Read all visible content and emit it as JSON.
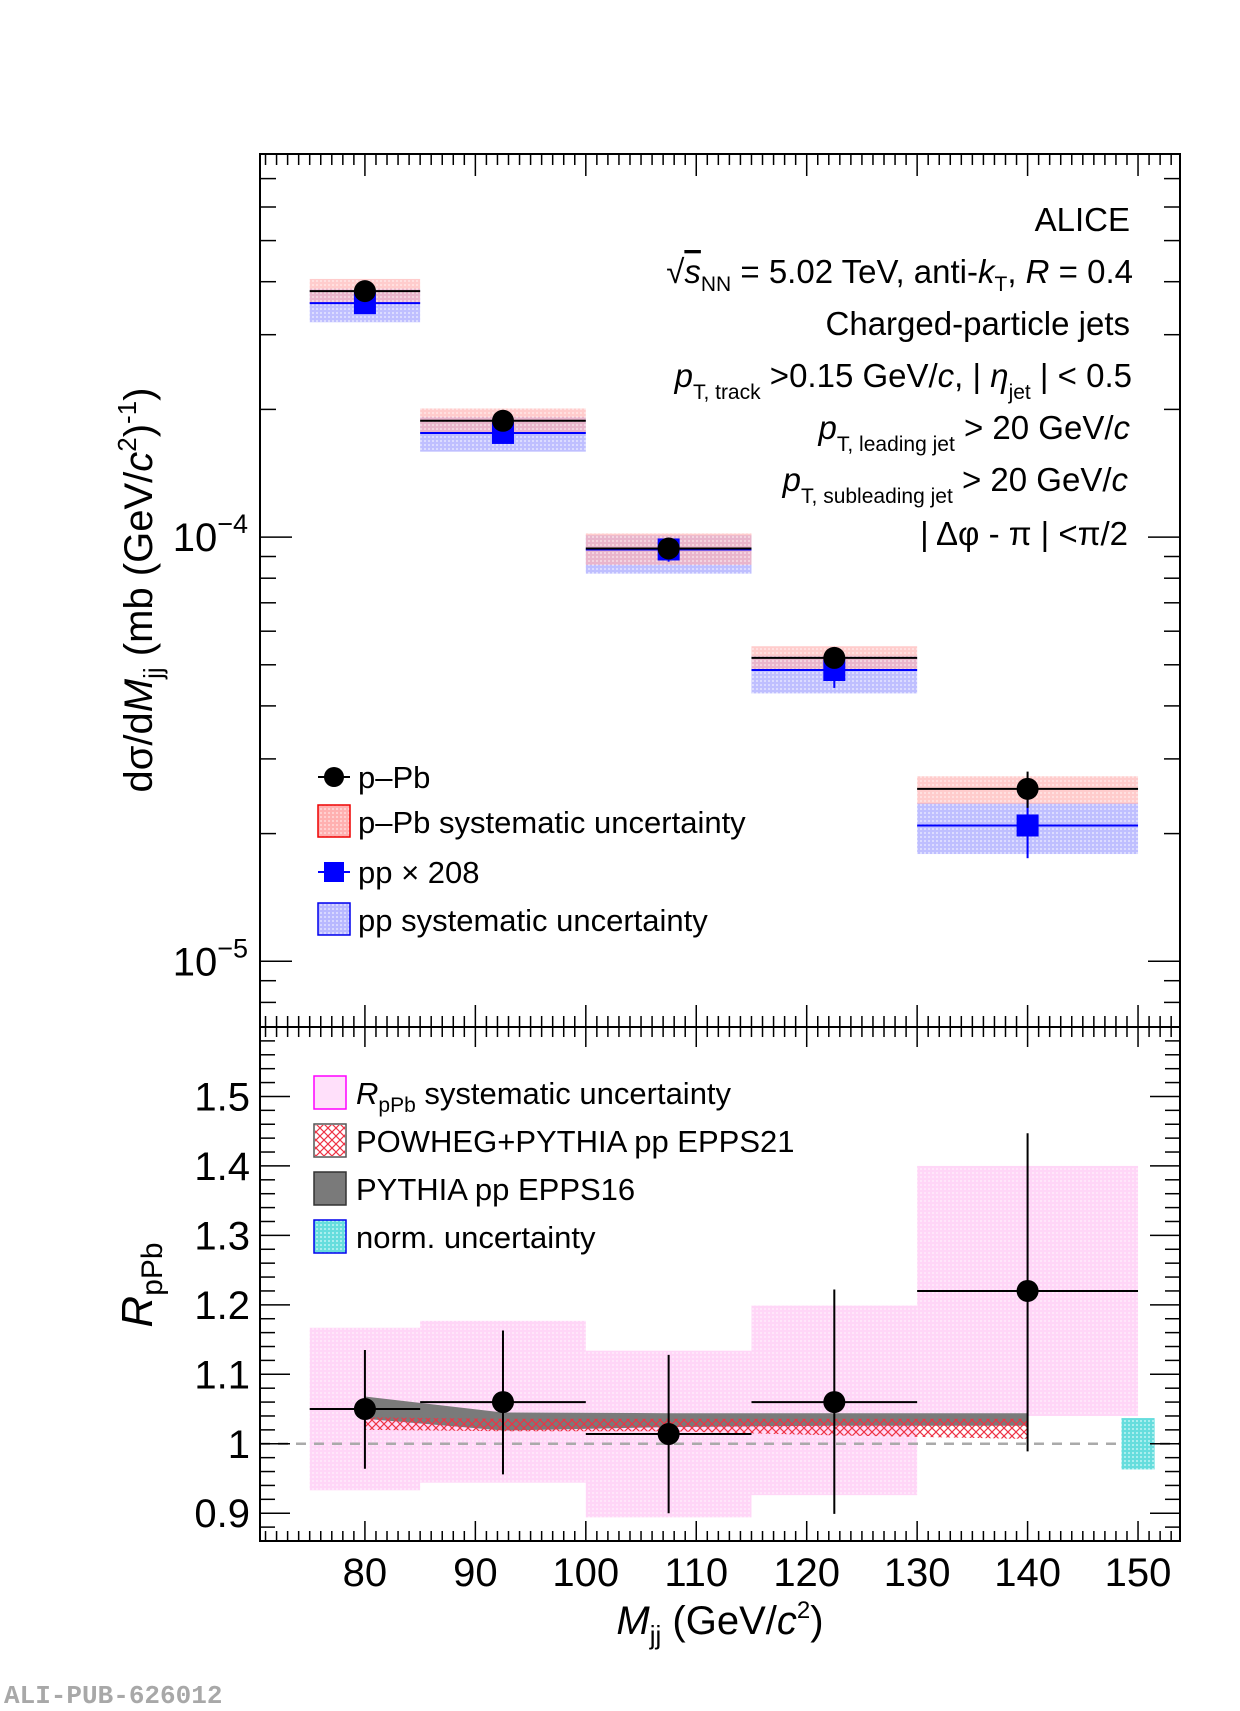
{
  "footer_id": "ALI-PUB-626012",
  "chart_data": [
    {
      "panel": "upper",
      "type": "scatter",
      "yscale": "log",
      "ylabel": "dσ/dM_jj (mb (GeV/c²)⁻¹)",
      "ylabel_parts": {
        "main": "dσ/d",
        "var": "M",
        "sub": "jj",
        "unit": " (mb (GeV/",
        "c": "c",
        "sup2": "2",
        "close": ")",
        "sup": "-1",
        "end": ")"
      },
      "xlim": [
        70.5,
        153.8
      ],
      "ylim": [
        7e-06,
        0.0008
      ],
      "y_major_ticks": [
        {
          "value": 0.0001,
          "base": "10",
          "exp": "−4"
        },
        {
          "value": 1e-05,
          "base": "10",
          "exp": "−5"
        }
      ],
      "bins": [
        [
          75,
          85
        ],
        [
          85,
          100
        ],
        [
          100,
          115
        ],
        [
          115,
          130
        ],
        [
          130,
          150
        ]
      ],
      "x": [
        80,
        92.5,
        107.5,
        122.5,
        140
      ],
      "series": [
        {
          "name": "p–Pb",
          "marker": "circle",
          "color": "#000000",
          "values": [
            0.00038,
            0.000188,
            9.4e-05,
            5.19e-05,
            2.55e-05
          ],
          "stat_err": [
            5e-06,
            5e-06,
            4e-06,
            2.5e-06,
            2.5e-06
          ],
          "syst_low": [
            0.000355,
            0.000176,
            8.6e-05,
            4.85e-05,
            2.35e-05
          ],
          "syst_high": [
            0.000406,
            0.000201,
            0.000102,
            5.53e-05,
            2.73e-05
          ],
          "syst_color": "#ff9999"
        },
        {
          "name": "pp × 208",
          "marker": "square",
          "color": "#0000ff",
          "values": [
            0.000356,
            0.000176,
            9.35e-05,
            4.86e-05,
            2.09e-05
          ],
          "stat_err": [
            1.5e-05,
            9e-06,
            6e-06,
            4.5e-06,
            3.4e-06
          ],
          "syst_low": [
            0.000321,
            0.000159,
            8.2e-05,
            4.28e-05,
            1.79e-05
          ],
          "syst_high": [
            0.000385,
            0.000192,
            0.000101,
            5.25e-05,
            2.36e-05
          ],
          "syst_color": "#9999ff"
        }
      ],
      "legend": {
        "placement": "bottom-left",
        "entries": [
          {
            "label": "p–Pb",
            "kind": "marker-circle"
          },
          {
            "label": "p–Pb systematic uncertainty",
            "kind": "box-red"
          },
          {
            "label": "pp × 208",
            "kind": "marker-square"
          },
          {
            "label": "pp systematic uncertainty",
            "kind": "box-blue"
          }
        ]
      },
      "annotations": {
        "placement": "top-right",
        "experiment": "ALICE",
        "energy": {
          "sqrt": "√",
          "s": "s",
          "sub": "NN",
          "rest": " = 5.02 TeV, anti-",
          "k": "k",
          "ksub": "T",
          "comma": ", ",
          "R": "R",
          "rval": " = 0.4"
        },
        "jets": "Charged-particle jets",
        "track_cut": {
          "p": "p",
          "sub": "T, track",
          "rest1": " >0.15 GeV/",
          "c": "c",
          "rest2": ", | ",
          "eta": "η",
          "etasub": "jet",
          "rest3": " | < 0.5"
        },
        "leading_cut": {
          "p": "p",
          "sub": "T, leading jet",
          "rest": " > 20 GeV/",
          "c": "c"
        },
        "subleading_cut": {
          "p": "p",
          "sub": "T, subleading jet",
          "rest": " > 20 GeV/",
          "c": "c"
        },
        "dphi_cut": "| Δφ - π | <π/2"
      }
    },
    {
      "panel": "lower",
      "type": "scatter",
      "ylabel": "R_pPb",
      "ylabel_parts": {
        "main": "R",
        "sub": "pPb"
      },
      "xlabel": "M_jj (GeV/c²)",
      "xlabel_parts": {
        "var": "M",
        "sub": "jj",
        "unit": " (GeV/",
        "c": "c",
        "sup": "2",
        "close": ")"
      },
      "xlim": [
        70.5,
        153.8
      ],
      "ylim": [
        0.86,
        1.6
      ],
      "x_ticks": [
        80,
        90,
        100,
        110,
        120,
        130,
        140,
        150
      ],
      "y_ticks": [
        0.9,
        1.0,
        1.1,
        1.2,
        1.3,
        1.4,
        1.5
      ],
      "y_tick_labels": [
        "0.9",
        "1",
        "1.1",
        "1.2",
        "1.3",
        "1.4",
        "1.5"
      ],
      "reference_line": 1.0,
      "bins": [
        [
          75,
          85
        ],
        [
          85,
          100
        ],
        [
          100,
          115
        ],
        [
          115,
          130
        ],
        [
          130,
          150
        ]
      ],
      "x": [
        80,
        92.5,
        107.5,
        122.5,
        140
      ],
      "series": [
        {
          "name": "R_pPb",
          "marker": "circle",
          "color": "#000000",
          "values": [
            1.05,
            1.06,
            1.014,
            1.06,
            1.22
          ],
          "stat_low": [
            0.964,
            0.956,
            0.9,
            0.899,
            0.989
          ],
          "stat_high": [
            1.135,
            1.163,
            1.128,
            1.222,
            1.447
          ],
          "syst_low": [
            0.933,
            0.944,
            0.894,
            0.926,
            1.04
          ],
          "syst_high": [
            1.167,
            1.177,
            1.134,
            1.199,
            1.4
          ],
          "syst_color": "#ffccf5"
        }
      ],
      "theory": [
        {
          "name": "POWHEG+PYTHIA pp EPPS21",
          "style": "hatch-red",
          "x": [
            80,
            92.5,
            107.5,
            122.5,
            140
          ],
          "low": [
            1.02,
            1.018,
            1.018,
            1.012,
            1.007
          ],
          "high": [
            1.038,
            1.036,
            1.036,
            1.036,
            1.036
          ]
        },
        {
          "name": "PYTHIA pp EPPS16",
          "style": "fill-gray",
          "x": [
            80,
            92.5,
            107.5,
            122.5,
            140
          ],
          "low": [
            1.036,
            1.019,
            1.024,
            1.026,
            1.026
          ],
          "high": [
            1.068,
            1.045,
            1.044,
            1.044,
            1.044
          ]
        }
      ],
      "norm_uncertainty": {
        "x": [
          148.5,
          151.5
        ],
        "low": 0.963,
        "high": 1.037,
        "color": "#66dddd"
      },
      "legend": {
        "placement": "top-left",
        "entries": [
          {
            "label_main": "R",
            "label_sub": "pPb",
            "label_rest": " systematic uncertainty",
            "kind": "box-pink"
          },
          {
            "label": "POWHEG+PYTHIA pp EPPS21",
            "kind": "box-hatch"
          },
          {
            "label": "PYTHIA pp EPPS16",
            "kind": "box-gray"
          },
          {
            "label": "norm. uncertainty",
            "kind": "box-cyan"
          }
        ]
      }
    }
  ]
}
